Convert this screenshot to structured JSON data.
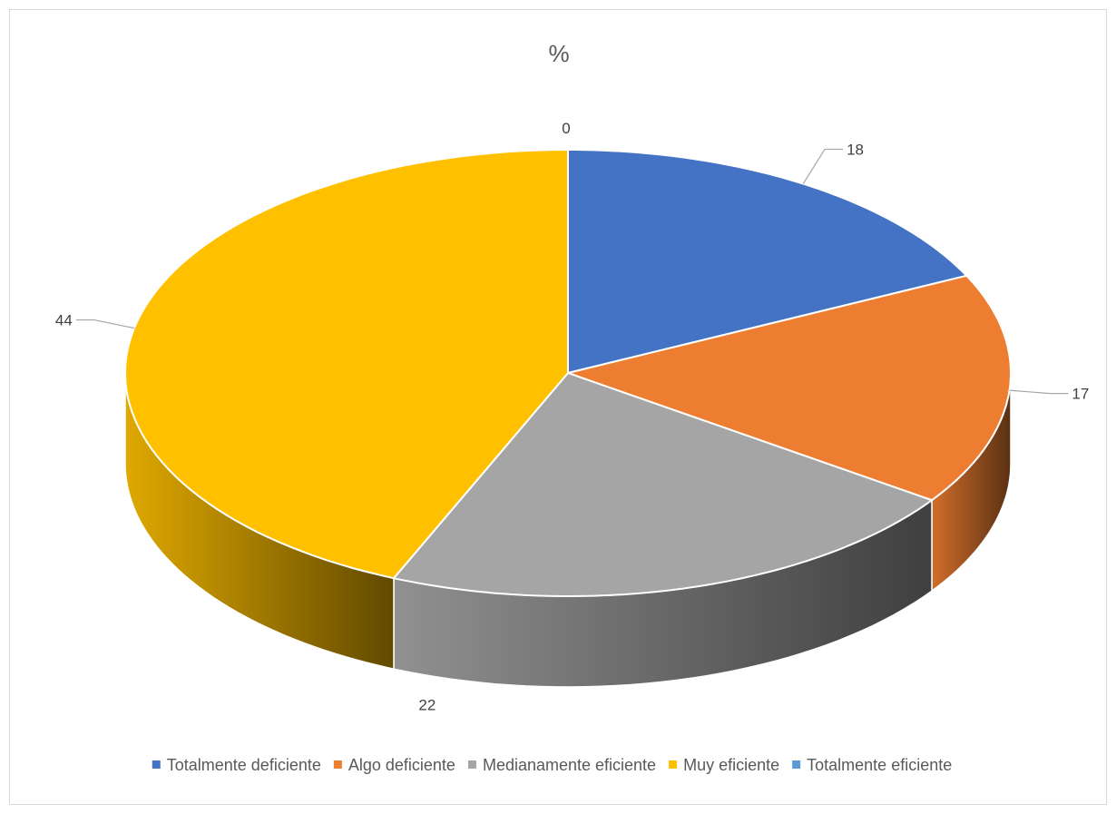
{
  "chart_data": {
    "type": "pie",
    "style": "3d",
    "title": "%",
    "categories": [
      "Totalmente deficiente",
      "Algo deficiente",
      "Medianamente eficiente",
      "Muy eficiente",
      "Totalmente eficiente"
    ],
    "values": [
      18,
      17,
      22,
      44,
      0
    ],
    "colors": [
      "#4472C4",
      "#ED7D31",
      "#A5A5A5",
      "#FFC000",
      "#5B9BD5"
    ],
    "data_labels": [
      "18",
      "17",
      "22",
      "44",
      "0"
    ],
    "legend_position": "bottom"
  }
}
